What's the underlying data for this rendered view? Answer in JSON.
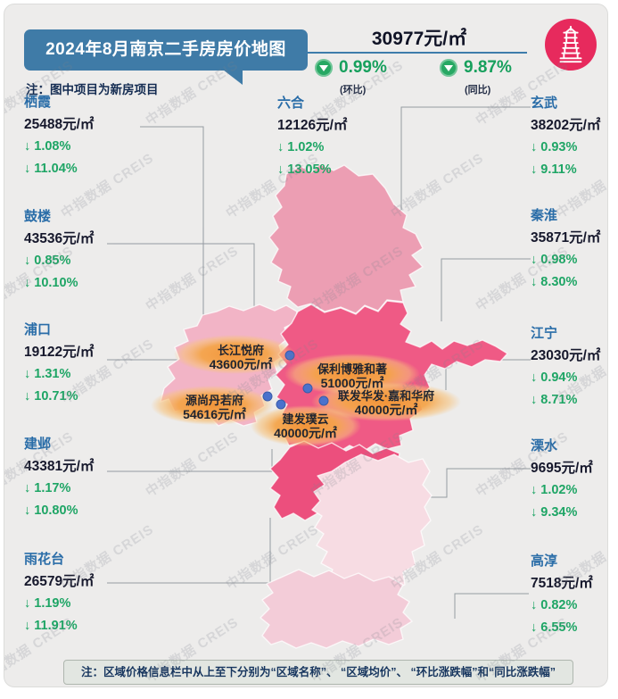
{
  "header": {
    "title": "2024年8月南京二手房房价地图",
    "subtitle_note": "注：图中项目为新房项目",
    "avg_price": "30977元/㎡",
    "mom_change": "0.99%",
    "mom_label": "(环比)",
    "yoy_change": "9.87%",
    "yoy_label": "(同比)",
    "logo_icon": "pagoda-icon"
  },
  "districts": [
    {
      "name": "栖霞",
      "price": "25488元/㎡",
      "mom": "↓ 1.08%",
      "yoy": "↓ 11.04%"
    },
    {
      "name": "鼓楼",
      "price": "43536元/㎡",
      "mom": "↓ 0.85%",
      "yoy": "↓ 10.10%"
    },
    {
      "name": "浦口",
      "price": "19122元/㎡",
      "mom": "↓ 1.31%",
      "yoy": "↓ 10.71%"
    },
    {
      "name": "建邺",
      "price": "43381元/㎡",
      "mom": "↓ 1.17%",
      "yoy": "↓ 10.80%"
    },
    {
      "name": "雨花台",
      "price": "26579元/㎡",
      "mom": "↓ 1.19%",
      "yoy": "↓ 11.91%"
    },
    {
      "name": "六合",
      "price": "12126元/㎡",
      "mom": "↓ 1.02%",
      "yoy": "↓ 13.05%"
    },
    {
      "name": "玄武",
      "price": "38202元/㎡",
      "mom": "↓ 0.93%",
      "yoy": "↓ 9.11%"
    },
    {
      "name": "秦淮",
      "price": "35871元/㎡",
      "mom": "↓ 0.98%",
      "yoy": "↓ 8.30%"
    },
    {
      "name": "江宁",
      "price": "23030元/㎡",
      "mom": "↓ 0.94%",
      "yoy": "↓ 8.71%"
    },
    {
      "name": "溧水",
      "price": "9695元/㎡",
      "mom": "↓ 1.02%",
      "yoy": "↓ 9.34%"
    },
    {
      "name": "高淳",
      "price": "7518元/㎡",
      "mom": "↓ 0.82%",
      "yoy": "↓ 6.55%"
    }
  ],
  "projects": [
    {
      "name": "长江悦府",
      "price": "43600元/㎡"
    },
    {
      "name": "保利博雅和著",
      "price": "51000元/㎡"
    },
    {
      "name": "源尚丹若府",
      "price": "54616元/㎡"
    },
    {
      "name": "联发华发·嘉和华府",
      "price": "40000元/㎡"
    },
    {
      "name": "建发璞云",
      "price": "40000元/㎡"
    }
  ],
  "footer": {
    "note": "注：区域价格信息栏中从上至下分别为“区域名称”、 “区域均价”、 “环比涨跌幅”和“同比涨跌幅”"
  },
  "watermark": "中指数据 CREIS",
  "colors": {
    "title_blue": "#3f7ba7",
    "district_blue": "#2a6da8",
    "change_green": "#1ea565",
    "logo_pink": "#e72a5d",
    "highlight_orange": "#f5a046",
    "map_center_pink": "#ef5a85",
    "map_light_pink": "#f7dce3"
  }
}
